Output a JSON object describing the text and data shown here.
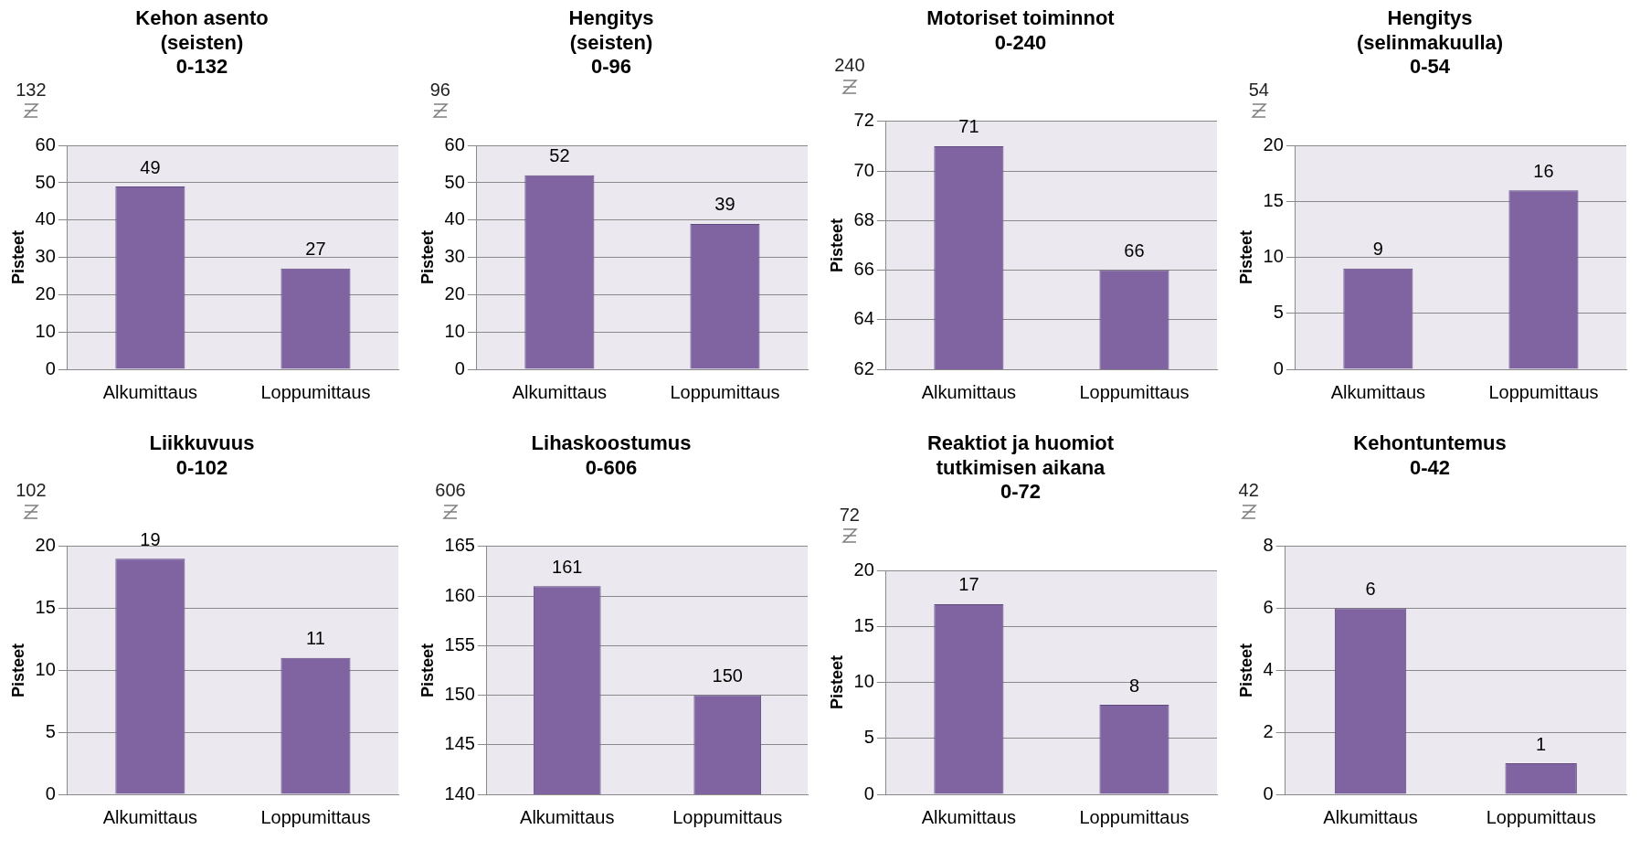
{
  "chart_data": [
    {
      "type": "bar",
      "title": "Kehon asento\n(seisten)\n0-132",
      "ylabel": "Pisteet",
      "categories": [
        "Alkumittaus",
        "Loppumittaus"
      ],
      "values": [
        49,
        27
      ],
      "color": "#8064a2",
      "ylim": [
        0,
        60
      ],
      "yticks": [
        0,
        10,
        20,
        30,
        40,
        50,
        60
      ],
      "grid": "y",
      "legend": false,
      "data_labels": true,
      "annotations": [
        "132"
      ]
    },
    {
      "type": "bar",
      "title": "Hengitys\n(seisten)\n0-96",
      "ylabel": "Pisteet",
      "categories": [
        "Alkumittaus",
        "Loppumittaus"
      ],
      "values": [
        52,
        39
      ],
      "color": "#8064a2",
      "ylim": [
        0,
        60
      ],
      "yticks": [
        0,
        10,
        20,
        30,
        40,
        50,
        60
      ],
      "grid": "y",
      "legend": false,
      "data_labels": true,
      "annotations": [
        "96"
      ]
    },
    {
      "type": "bar",
      "title": "Motoriset toiminnot\n0-240",
      "ylabel": "Pisteet",
      "categories": [
        "Alkumittaus",
        "Loppumittaus"
      ],
      "values": [
        71,
        66
      ],
      "color": "#8064a2",
      "ylim": [
        62,
        72
      ],
      "yticks": [
        62,
        64,
        66,
        68,
        70,
        72
      ],
      "grid": "y",
      "legend": false,
      "data_labels": true,
      "annotations": [
        "240"
      ]
    },
    {
      "type": "bar",
      "title": "Hengitys\n(selinmakuulla)\n0-54",
      "ylabel": "Pisteet",
      "categories": [
        "Alkumittaus",
        "Loppumittaus"
      ],
      "values": [
        9,
        16
      ],
      "color": "#8064a2",
      "ylim": [
        0,
        20
      ],
      "yticks": [
        0,
        5,
        10,
        15,
        20
      ],
      "grid": "y",
      "legend": false,
      "data_labels": true,
      "annotations": [
        "54"
      ]
    },
    {
      "type": "bar",
      "title": "Liikkuvuus\n0-102",
      "ylabel": "Pisteet",
      "categories": [
        "Alkumittaus",
        "Loppumittaus"
      ],
      "values": [
        19,
        11
      ],
      "color": "#8064a2",
      "ylim": [
        0,
        20
      ],
      "yticks": [
        0,
        5,
        10,
        15,
        20
      ],
      "grid": "y",
      "legend": false,
      "data_labels": true,
      "annotations": [
        "102"
      ]
    },
    {
      "type": "bar",
      "title": "Lihaskoostumus\n0-606",
      "ylabel": "Pisteet",
      "categories": [
        "Alkumittaus",
        "Loppumittaus"
      ],
      "values": [
        161,
        150
      ],
      "color": "#8064a2",
      "ylim": [
        140,
        165
      ],
      "yticks": [
        140,
        145,
        150,
        155,
        160,
        165
      ],
      "grid": "y",
      "legend": false,
      "data_labels": true,
      "annotations": [
        "606"
      ]
    },
    {
      "type": "bar",
      "title": "Reaktiot ja huomiot\ntutkimisen aikana\n0-72",
      "ylabel": "Pisteet",
      "categories": [
        "Alkumittaus",
        "Loppumittaus"
      ],
      "values": [
        17,
        8
      ],
      "color": "#8064a2",
      "ylim": [
        0,
        20
      ],
      "yticks": [
        0,
        5,
        10,
        15,
        20
      ],
      "grid": "y",
      "legend": false,
      "data_labels": true,
      "annotations": [
        "72"
      ]
    },
    {
      "type": "bar",
      "title": "Kehontuntemus\n0-42",
      "ylabel": "Pisteet",
      "categories": [
        "Alkumittaus",
        "Loppumittaus"
      ],
      "values": [
        6,
        1
      ],
      "color": "#8064a2",
      "ylim": [
        0,
        8
      ],
      "yticks": [
        0,
        2,
        4,
        6,
        8
      ],
      "grid": "y",
      "legend": false,
      "data_labels": true,
      "annotations": [
        "42"
      ]
    }
  ]
}
